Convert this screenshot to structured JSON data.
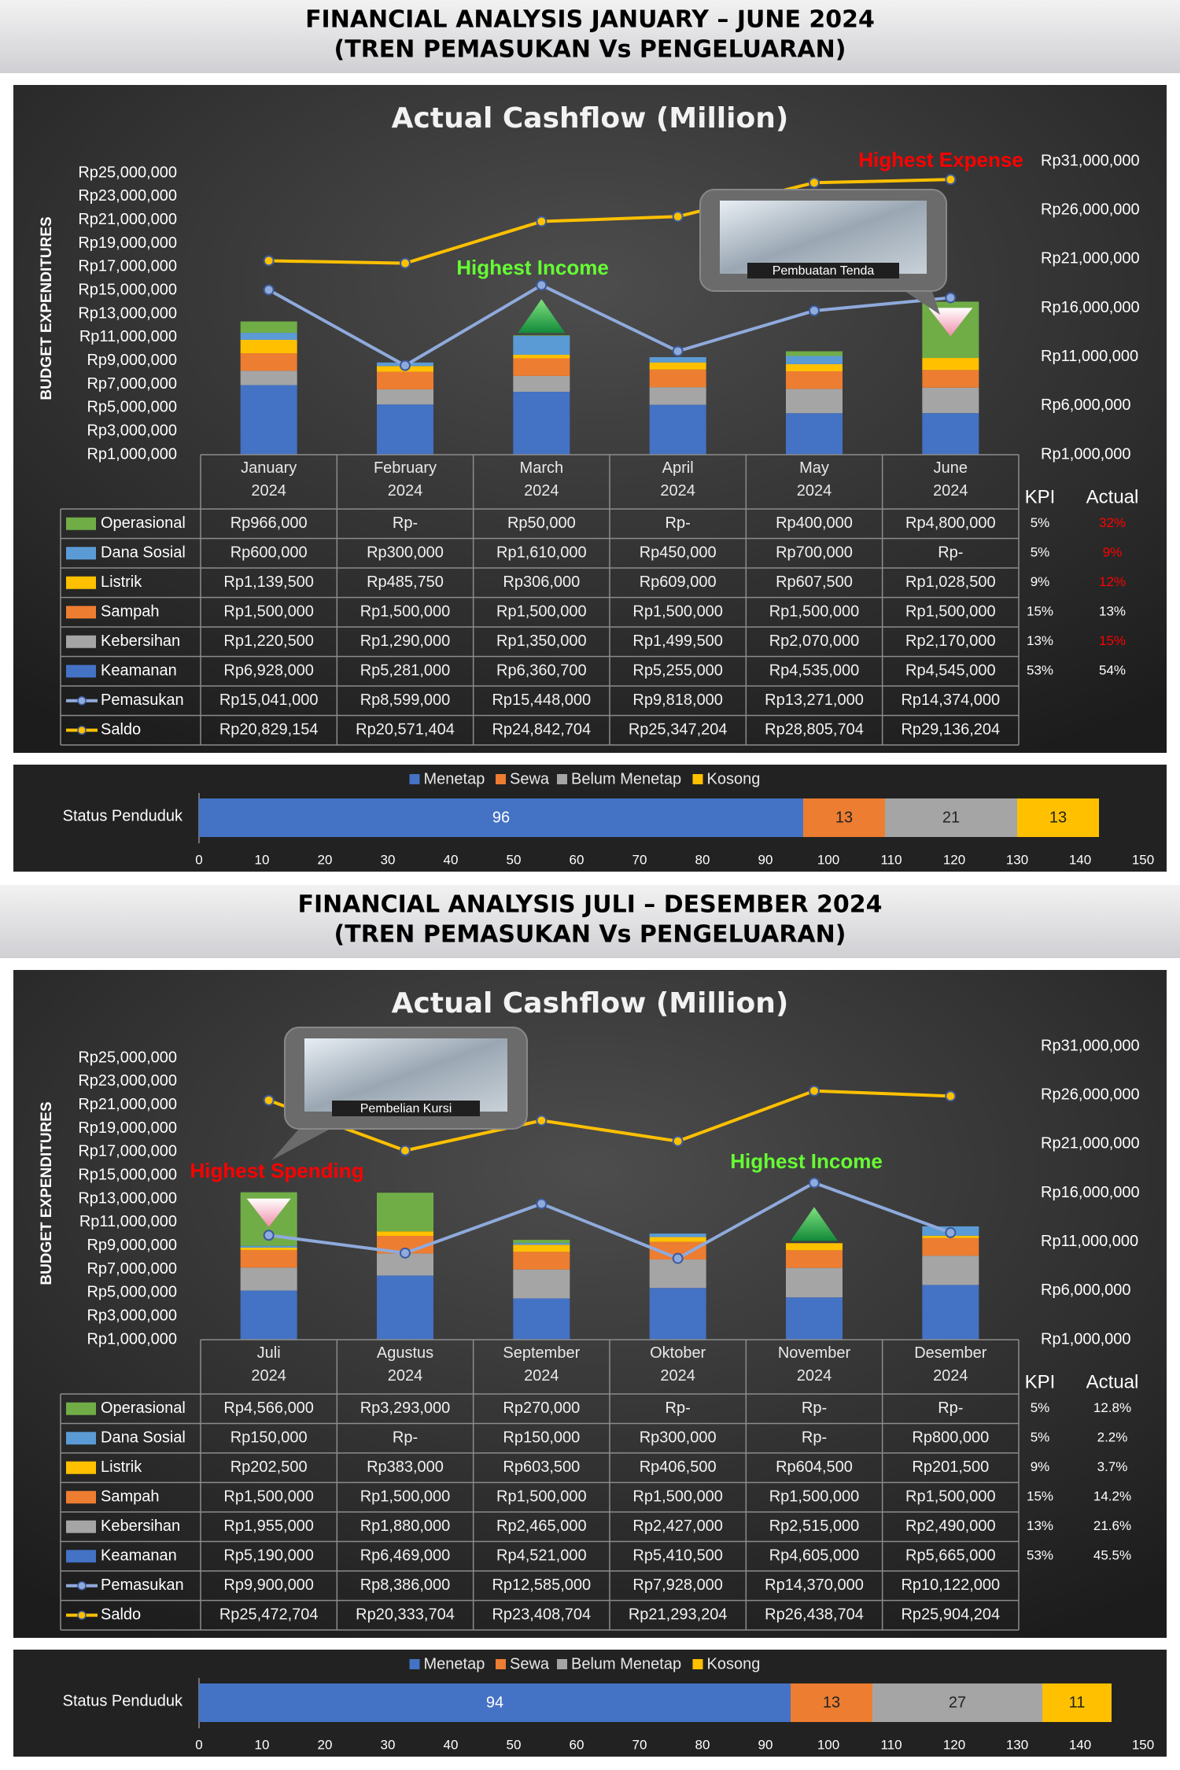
{
  "headers": [
    {
      "title": "FINANCIAL ANALYSIS JANUARY – JUNE 2024",
      "subtitle": "(TREN PEMASUKAN Vs PENGELUARAN)"
    },
    {
      "title": "FINANCIAL ANALYSIS JULI – DESEMBER 2024",
      "subtitle": "(TREN PEMASUKAN Vs PENGELUARAN)"
    }
  ],
  "chart_data": [
    {
      "type": "combo",
      "title": "Actual Cashflow (Million)",
      "y_label": "BUDGET EXPENDITURES",
      "stacked": true,
      "categories": [
        "January 2024",
        "February 2024",
        "March 2024",
        "April 2024",
        "May 2024",
        "June 2024"
      ],
      "series": [
        {
          "name": "Operasional",
          "color": "#70ad47",
          "values": [
            966000,
            0,
            50000,
            0,
            400000,
            4800000
          ],
          "value_labels": [
            "Rp966,000",
            "Rp-",
            "Rp50,000",
            "Rp-",
            "Rp400,000",
            "Rp4,800,000"
          ]
        },
        {
          "name": "Dana Sosial",
          "color": "#5b9bd5",
          "values": [
            600000,
            300000,
            1610000,
            450000,
            700000,
            0
          ],
          "value_labels": [
            "Rp600,000",
            "Rp300,000",
            "Rp1,610,000",
            "Rp450,000",
            "Rp700,000",
            "Rp-"
          ]
        },
        {
          "name": "Listrik",
          "color": "#ffc000",
          "values": [
            1139500,
            485750,
            306000,
            609000,
            607500,
            1028500
          ],
          "value_labels": [
            "Rp1,139,500",
            "Rp485,750",
            "Rp306,000",
            "Rp609,000",
            "Rp607,500",
            "Rp1,028,500"
          ]
        },
        {
          "name": "Sampah",
          "color": "#ed7d31",
          "values": [
            1500000,
            1500000,
            1500000,
            1500000,
            1500000,
            1500000
          ],
          "value_labels": [
            "Rp1,500,000",
            "Rp1,500,000",
            "Rp1,500,000",
            "Rp1,500,000",
            "Rp1,500,000",
            "Rp1,500,000"
          ]
        },
        {
          "name": "Kebersihan",
          "color": "#a5a5a5",
          "values": [
            1220500,
            1290000,
            1350000,
            1499500,
            2070000,
            2170000
          ],
          "value_labels": [
            "Rp1,220,500",
            "Rp1,290,000",
            "Rp1,350,000",
            "Rp1,499,500",
            "Rp2,070,000",
            "Rp2,170,000"
          ]
        },
        {
          "name": "Keamanan",
          "color": "#4472c4",
          "values": [
            6928000,
            5281000,
            6360700,
            5255000,
            4535000,
            4545000
          ],
          "value_labels": [
            "Rp6,928,000",
            "Rp5,281,000",
            "Rp6,360,700",
            "Rp5,255,000",
            "Rp4,535,000",
            "Rp4,545,000"
          ]
        },
        {
          "name": "Pemasukan",
          "color": "#8faadc",
          "kind": "line",
          "values": [
            15041000,
            8599000,
            15448000,
            9818000,
            13271000,
            14374000
          ],
          "value_labels": [
            "Rp15,041,000",
            "Rp8,599,000",
            "Rp15,448,000",
            "Rp9,818,000",
            "Rp13,271,000",
            "Rp14,374,000"
          ]
        },
        {
          "name": "Saldo",
          "color": "#ffc000",
          "kind": "line",
          "axis": "y2",
          "values": [
            20829154,
            20571404,
            24842704,
            25347204,
            28805704,
            29136204
          ],
          "value_labels": [
            "Rp20,829,154",
            "Rp20,571,404",
            "Rp24,842,704",
            "Rp25,347,204",
            "Rp28,805,704",
            "Rp29,136,204"
          ]
        }
      ],
      "ylim": [
        1000000,
        25000000
      ],
      "yticks": [
        {
          "value": 1000000,
          "label": "Rp1,000,000"
        },
        {
          "value": 3000000,
          "label": "Rp3,000,000"
        },
        {
          "value": 5000000,
          "label": "Rp5,000,000"
        },
        {
          "value": 7000000,
          "label": "Rp7,000,000"
        },
        {
          "value": 9000000,
          "label": "Rp9,000,000"
        },
        {
          "value": 11000000,
          "label": "Rp11,000,000"
        },
        {
          "value": 13000000,
          "label": "Rp13,000,000"
        },
        {
          "value": 15000000,
          "label": "Rp15,000,000"
        },
        {
          "value": 17000000,
          "label": "Rp17,000,000"
        },
        {
          "value": 19000000,
          "label": "Rp19,000,000"
        },
        {
          "value": 21000000,
          "label": "Rp21,000,000"
        },
        {
          "value": 23000000,
          "label": "Rp23,000,000"
        },
        {
          "value": 25000000,
          "label": "Rp25,000,000"
        }
      ],
      "y2lim": [
        1000000,
        31000000
      ],
      "y2ticks": [
        {
          "value": 1000000,
          "label": "Rp1,000,000"
        },
        {
          "value": 6000000,
          "label": "Rp6,000,000"
        },
        {
          "value": 11000000,
          "label": "Rp11,000,000"
        },
        {
          "value": 16000000,
          "label": "Rp16,000,000"
        },
        {
          "value": 21000000,
          "label": "Rp21,000,000"
        },
        {
          "value": 26000000,
          "label": "Rp26,000,000"
        },
        {
          "value": 31000000,
          "label": "Rp31,000,000"
        }
      ],
      "annotations": [
        {
          "text": "Highest Expense",
          "color": "#ff0000"
        },
        {
          "text": "Highest Income",
          "color": "#66ff33"
        }
      ],
      "callout": {
        "caption": "Pembuatan Tenda"
      },
      "kpi": {
        "header": "KPI",
        "actual_header": "Actual",
        "targets": [
          "5%",
          "5%",
          "9%",
          "15%",
          "13%",
          "53%"
        ],
        "actual": [
          "32%",
          "9%",
          "12%",
          "13%",
          "15%",
          "54%"
        ],
        "actual_colors": [
          "#ff0000",
          "#ff0000",
          "#ff0000",
          "#ffffff",
          "#ff0000",
          "#ffffff"
        ]
      }
    },
    {
      "type": "bar",
      "orientation": "horizontal",
      "stacked": true,
      "categories": [
        "Status Penduduk"
      ],
      "series": [
        {
          "name": "Menetap",
          "color": "#4472c4",
          "values": [
            96
          ]
        },
        {
          "name": "Sewa",
          "color": "#ed7d31",
          "values": [
            13
          ]
        },
        {
          "name": "Belum Menetap",
          "color": "#a5a5a5",
          "values": [
            21
          ]
        },
        {
          "name": "Kosong",
          "color": "#ffc000",
          "values": [
            13
          ]
        }
      ],
      "xlim": [
        0,
        150
      ],
      "xticks": [
        0,
        10,
        20,
        30,
        40,
        50,
        60,
        70,
        80,
        90,
        100,
        110,
        120,
        130,
        140,
        150
      ]
    },
    {
      "type": "combo",
      "title": "Actual Cashflow (Million)",
      "y_label": "BUDGET EXPENDITURES",
      "stacked": true,
      "categories": [
        "Juli 2024",
        "Agustus 2024",
        "September 2024",
        "Oktober 2024",
        "November 2024",
        "Desember 2024"
      ],
      "series": [
        {
          "name": "Operasional",
          "color": "#70ad47",
          "values": [
            4566000,
            3293000,
            270000,
            0,
            0,
            0
          ],
          "value_labels": [
            "Rp4,566,000",
            "Rp3,293,000",
            "Rp270,000",
            "Rp-",
            "Rp-",
            "Rp-"
          ]
        },
        {
          "name": "Dana Sosial",
          "color": "#5b9bd5",
          "values": [
            150000,
            0,
            150000,
            300000,
            0,
            800000
          ],
          "value_labels": [
            "Rp150,000",
            "Rp-",
            "Rp150,000",
            "Rp300,000",
            "Rp-",
            "Rp800,000"
          ]
        },
        {
          "name": "Listrik",
          "color": "#ffc000",
          "values": [
            202500,
            383000,
            603500,
            406500,
            604500,
            201500
          ],
          "value_labels": [
            "Rp202,500",
            "Rp383,000",
            "Rp603,500",
            "Rp406,500",
            "Rp604,500",
            "Rp201,500"
          ]
        },
        {
          "name": "Sampah",
          "color": "#ed7d31",
          "values": [
            1500000,
            1500000,
            1500000,
            1500000,
            1500000,
            1500000
          ],
          "value_labels": [
            "Rp1,500,000",
            "Rp1,500,000",
            "Rp1,500,000",
            "Rp1,500,000",
            "Rp1,500,000",
            "Rp1,500,000"
          ]
        },
        {
          "name": "Kebersihan",
          "color": "#a5a5a5",
          "values": [
            1955000,
            1880000,
            2465000,
            2427000,
            2515000,
            2490000
          ],
          "value_labels": [
            "Rp1,955,000",
            "Rp1,880,000",
            "Rp2,465,000",
            "Rp2,427,000",
            "Rp2,515,000",
            "Rp2,490,000"
          ]
        },
        {
          "name": "Keamanan",
          "color": "#4472c4",
          "values": [
            5190000,
            6469000,
            4521000,
            5410500,
            4605000,
            5665000
          ],
          "value_labels": [
            "Rp5,190,000",
            "Rp6,469,000",
            "Rp4,521,000",
            "Rp5,410,500",
            "Rp4,605,000",
            "Rp5,665,000"
          ]
        },
        {
          "name": "Pemasukan",
          "color": "#8faadc",
          "kind": "line",
          "values": [
            9900000,
            8386000,
            12585000,
            7928000,
            14370000,
            10122000
          ],
          "value_labels": [
            "Rp9,900,000",
            "Rp8,386,000",
            "Rp12,585,000",
            "Rp7,928,000",
            "Rp14,370,000",
            "Rp10,122,000"
          ]
        },
        {
          "name": "Saldo",
          "color": "#ffc000",
          "kind": "line",
          "axis": "y2",
          "values": [
            25472704,
            20333704,
            23408704,
            21293204,
            26438704,
            25904204
          ],
          "value_labels": [
            "Rp25,472,704",
            "Rp20,333,704",
            "Rp23,408,704",
            "Rp21,293,204",
            "Rp26,438,704",
            "Rp25,904,204"
          ]
        }
      ],
      "ylim": [
        1000000,
        25000000
      ],
      "yticks": [
        {
          "value": 1000000,
          "label": "Rp1,000,000"
        },
        {
          "value": 3000000,
          "label": "Rp3,000,000"
        },
        {
          "value": 5000000,
          "label": "Rp5,000,000"
        },
        {
          "value": 7000000,
          "label": "Rp7,000,000"
        },
        {
          "value": 9000000,
          "label": "Rp9,000,000"
        },
        {
          "value": 11000000,
          "label": "Rp11,000,000"
        },
        {
          "value": 13000000,
          "label": "Rp13,000,000"
        },
        {
          "value": 15000000,
          "label": "Rp15,000,000"
        },
        {
          "value": 17000000,
          "label": "Rp17,000,000"
        },
        {
          "value": 19000000,
          "label": "Rp19,000,000"
        },
        {
          "value": 21000000,
          "label": "Rp21,000,000"
        },
        {
          "value": 23000000,
          "label": "Rp23,000,000"
        },
        {
          "value": 25000000,
          "label": "Rp25,000,000"
        }
      ],
      "y2lim": [
        1000000,
        31000000
      ],
      "y2ticks": [
        {
          "value": 1000000,
          "label": "Rp1,000,000"
        },
        {
          "value": 6000000,
          "label": "Rp6,000,000"
        },
        {
          "value": 11000000,
          "label": "Rp11,000,000"
        },
        {
          "value": 16000000,
          "label": "Rp16,000,000"
        },
        {
          "value": 21000000,
          "label": "Rp21,000,000"
        },
        {
          "value": 26000000,
          "label": "Rp26,000,000"
        },
        {
          "value": 31000000,
          "label": "Rp31,000,000"
        }
      ],
      "annotations": [
        {
          "text": "Highest Spending",
          "color": "#ff0000"
        },
        {
          "text": "Highest Income",
          "color": "#66ff33"
        }
      ],
      "callout": {
        "caption": "Pembelian Kursi"
      },
      "kpi": {
        "header": "KPI",
        "actual_header": "Actual",
        "targets": [
          "5%",
          "5%",
          "9%",
          "15%",
          "13%",
          "53%"
        ],
        "actual": [
          "12.8%",
          "2.2%",
          "3.7%",
          "14.2%",
          "21.6%",
          "45.5%"
        ],
        "actual_colors": [
          "#ffffff",
          "#ffffff",
          "#ffffff",
          "#ffffff",
          "#ffffff",
          "#ffffff"
        ]
      }
    },
    {
      "type": "bar",
      "orientation": "horizontal",
      "stacked": true,
      "categories": [
        "Status Penduduk"
      ],
      "series": [
        {
          "name": "Menetap",
          "color": "#4472c4",
          "values": [
            94
          ]
        },
        {
          "name": "Sewa",
          "color": "#ed7d31",
          "values": [
            13
          ]
        },
        {
          "name": "Belum Menetap",
          "color": "#a5a5a5",
          "values": [
            27
          ]
        },
        {
          "name": "Kosong",
          "color": "#ffc000",
          "values": [
            11
          ]
        }
      ],
      "xlim": [
        0,
        150
      ],
      "xticks": [
        0,
        10,
        20,
        30,
        40,
        50,
        60,
        70,
        80,
        90,
        100,
        110,
        120,
        130,
        140,
        150
      ]
    }
  ]
}
